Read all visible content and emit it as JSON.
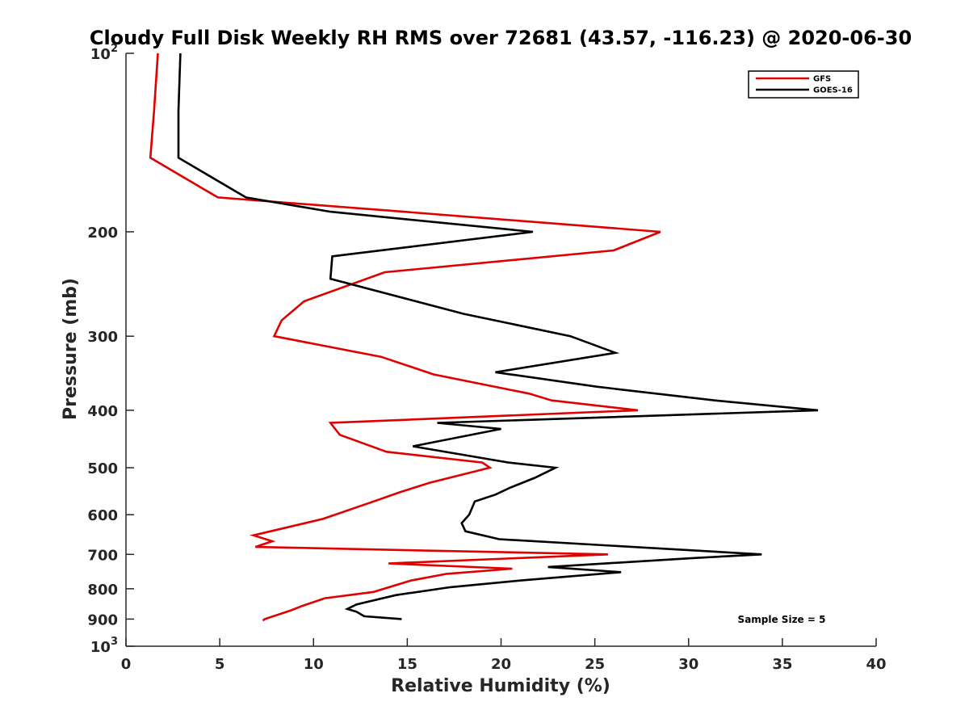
{
  "chart_data": {
    "type": "line",
    "title": "Cloudy Full Disk Weekly RH RMS over 72681 (43.57, -116.23) @ 2020-06-30",
    "xlabel": "Relative Humidity (%)",
    "ylabel": "Pressure (mb)",
    "xlim": [
      0,
      40
    ],
    "ylim": [
      100,
      1000
    ],
    "y_scale": "log",
    "y_reversed": true,
    "grid": false,
    "legend_position": "top-right",
    "x_ticks": [
      0,
      5,
      10,
      15,
      20,
      25,
      30,
      35,
      40
    ],
    "y_ticks": [
      {
        "value": 100,
        "base": "10",
        "exp": "2"
      },
      {
        "value": 200,
        "label": "200"
      },
      {
        "value": 300,
        "label": "300"
      },
      {
        "value": 400,
        "label": "400"
      },
      {
        "value": 500,
        "label": "500"
      },
      {
        "value": 600,
        "label": "600"
      },
      {
        "value": 700,
        "label": "700"
      },
      {
        "value": 800,
        "label": "800"
      },
      {
        "value": 900,
        "label": "900"
      },
      {
        "value": 1000,
        "base": "10",
        "exp": "3"
      }
    ],
    "annotation": "Sample Size = 5",
    "series": [
      {
        "name": "GFS",
        "color": "#e00000",
        "points": [
          [
            1.7,
            100
          ],
          [
            1.5,
            125
          ],
          [
            1.3,
            150
          ],
          [
            4.9,
            175
          ],
          [
            14.8,
            185
          ],
          [
            28.5,
            200
          ],
          [
            26.0,
            215
          ],
          [
            13.8,
            234
          ],
          [
            9.5,
            262
          ],
          [
            8.3,
            282
          ],
          [
            7.9,
            300
          ],
          [
            13.6,
            325
          ],
          [
            16.4,
            348
          ],
          [
            21.5,
            375
          ],
          [
            22.7,
            385
          ],
          [
            27.3,
            400
          ],
          [
            10.9,
            420
          ],
          [
            11.4,
            440
          ],
          [
            13.9,
            470
          ],
          [
            19.0,
            490
          ],
          [
            19.4,
            500
          ],
          [
            16.2,
            530
          ],
          [
            14.6,
            550
          ],
          [
            13.2,
            570
          ],
          [
            10.5,
            610
          ],
          [
            6.8,
            650
          ],
          [
            7.8,
            665
          ],
          [
            6.9,
            680
          ],
          [
            25.7,
            700
          ],
          [
            14.0,
            725
          ],
          [
            20.6,
            740
          ],
          [
            17.1,
            755
          ],
          [
            15.2,
            775
          ],
          [
            13.2,
            810
          ],
          [
            10.6,
            830
          ],
          [
            9.4,
            855
          ],
          [
            8.8,
            870
          ],
          [
            7.4,
            900
          ],
          [
            7.3,
            905
          ]
        ]
      },
      {
        "name": "GOES-16",
        "color": "#000000",
        "points": [
          [
            2.9,
            100
          ],
          [
            2.8,
            125
          ],
          [
            2.8,
            150
          ],
          [
            6.4,
            175
          ],
          [
            10.9,
            185
          ],
          [
            21.7,
            200
          ],
          [
            11.0,
            220
          ],
          [
            10.9,
            240
          ],
          [
            18.0,
            275
          ],
          [
            23.7,
            300
          ],
          [
            26.1,
            320
          ],
          [
            19.7,
            345
          ],
          [
            25.1,
            365
          ],
          [
            31.4,
            385
          ],
          [
            36.9,
            400
          ],
          [
            16.6,
            420
          ],
          [
            20.0,
            430
          ],
          [
            15.3,
            460
          ],
          [
            20.4,
            490
          ],
          [
            22.9,
            500
          ],
          [
            21.8,
            520
          ],
          [
            20.5,
            540
          ],
          [
            19.7,
            555
          ],
          [
            18.6,
            570
          ],
          [
            18.3,
            600
          ],
          [
            17.9,
            620
          ],
          [
            18.1,
            640
          ],
          [
            19.9,
            660
          ],
          [
            33.9,
            700
          ],
          [
            30.3,
            710
          ],
          [
            22.5,
            735
          ],
          [
            26.4,
            750
          ],
          [
            21.0,
            775
          ],
          [
            17.3,
            795
          ],
          [
            14.4,
            820
          ],
          [
            12.3,
            850
          ],
          [
            11.8,
            865
          ],
          [
            12.3,
            875
          ],
          [
            12.7,
            890
          ],
          [
            14.7,
            900
          ]
        ]
      }
    ]
  }
}
